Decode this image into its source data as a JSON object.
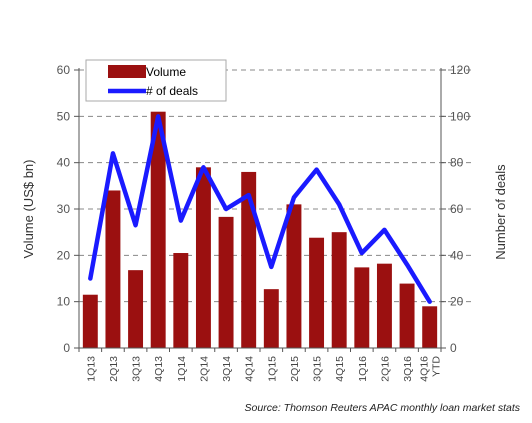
{
  "chart_data": {
    "type": "bar+line",
    "categories": [
      "1Q13",
      "2Q13",
      "3Q13",
      "4Q13",
      "1Q14",
      "2Q14",
      "3Q14",
      "4Q14",
      "1Q15",
      "2Q15",
      "3Q15",
      "4Q15",
      "1Q16",
      "2Q16",
      "3Q16",
      "4Q16 YTD"
    ],
    "series": [
      {
        "name": "Volume",
        "type": "bar",
        "axis": "left",
        "color": "#9b1010",
        "values": [
          11.5,
          34,
          16.8,
          51,
          20.5,
          39,
          28.3,
          38,
          12.7,
          31,
          23.8,
          25,
          17.4,
          18.2,
          13.9,
          9
        ]
      },
      {
        "name": "# of deals",
        "type": "line",
        "axis": "right",
        "color": "#1a1aff",
        "values": [
          30,
          84,
          53,
          100,
          55,
          78,
          60,
          66,
          35,
          65,
          77,
          62,
          41,
          51,
          36,
          20
        ]
      }
    ],
    "ylabel": "Volume (US$ bn)",
    "y2label": "Number of deals",
    "ylim": [
      0,
      60
    ],
    "y2lim": [
      0,
      120
    ],
    "yticks": [
      0,
      10,
      20,
      30,
      40,
      50,
      60
    ],
    "y2ticks": [
      0,
      20,
      40,
      60,
      80,
      100,
      120
    ],
    "grid": true,
    "legend": "top-left"
  },
  "source_note": "Source: Thomson Reuters APAC monthly loan market stats"
}
